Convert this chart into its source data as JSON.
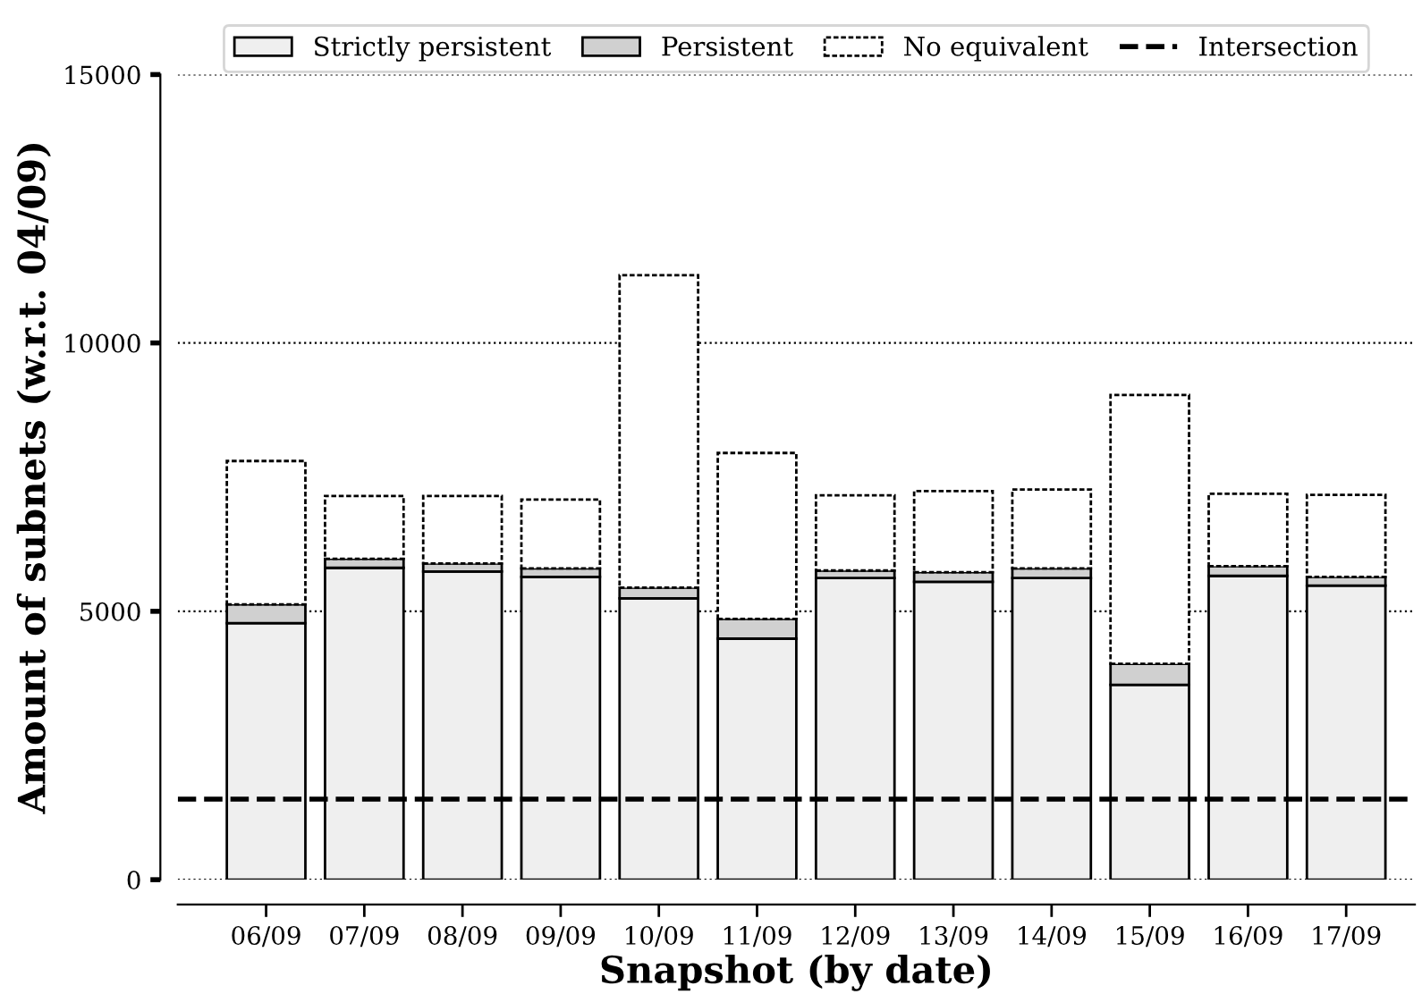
{
  "chart_data": {
    "type": "bar",
    "stacked": true,
    "xlabel": "Snapshot (by date)",
    "ylabel": "Amount of subnets (w.r.t. 04/09)",
    "categories": [
      "06/09",
      "07/09",
      "08/09",
      "09/09",
      "10/09",
      "11/09",
      "12/09",
      "13/09",
      "14/09",
      "15/09",
      "16/09",
      "17/09"
    ],
    "series": [
      {
        "name": "Strictly persistent",
        "color": "#efefef",
        "line_style": "solid",
        "values": [
          4780,
          5810,
          5740,
          5640,
          5240,
          4490,
          5620,
          5550,
          5620,
          3630,
          5660,
          5480
        ]
      },
      {
        "name": "Persistent",
        "color": "#d0d0d0",
        "line_style": "solid",
        "values": [
          350,
          170,
          150,
          160,
          200,
          370,
          140,
          180,
          180,
          390,
          180,
          160
        ]
      },
      {
        "name": "No equivalent",
        "color": "#ffffff",
        "line_style": "dotted",
        "values": [
          2670,
          1170,
          1260,
          1280,
          5820,
          3090,
          1400,
          1510,
          1470,
          5010,
          1350,
          1530
        ]
      }
    ],
    "ref_lines": [
      {
        "axis": "y",
        "value": 1500,
        "label": "Intersection",
        "color": "#000000",
        "line_style": "dashed"
      }
    ],
    "ylim": [
      0,
      15000
    ],
    "yticks": [
      0,
      5000,
      10000,
      15000
    ],
    "grid": "y",
    "legend": "top"
  }
}
